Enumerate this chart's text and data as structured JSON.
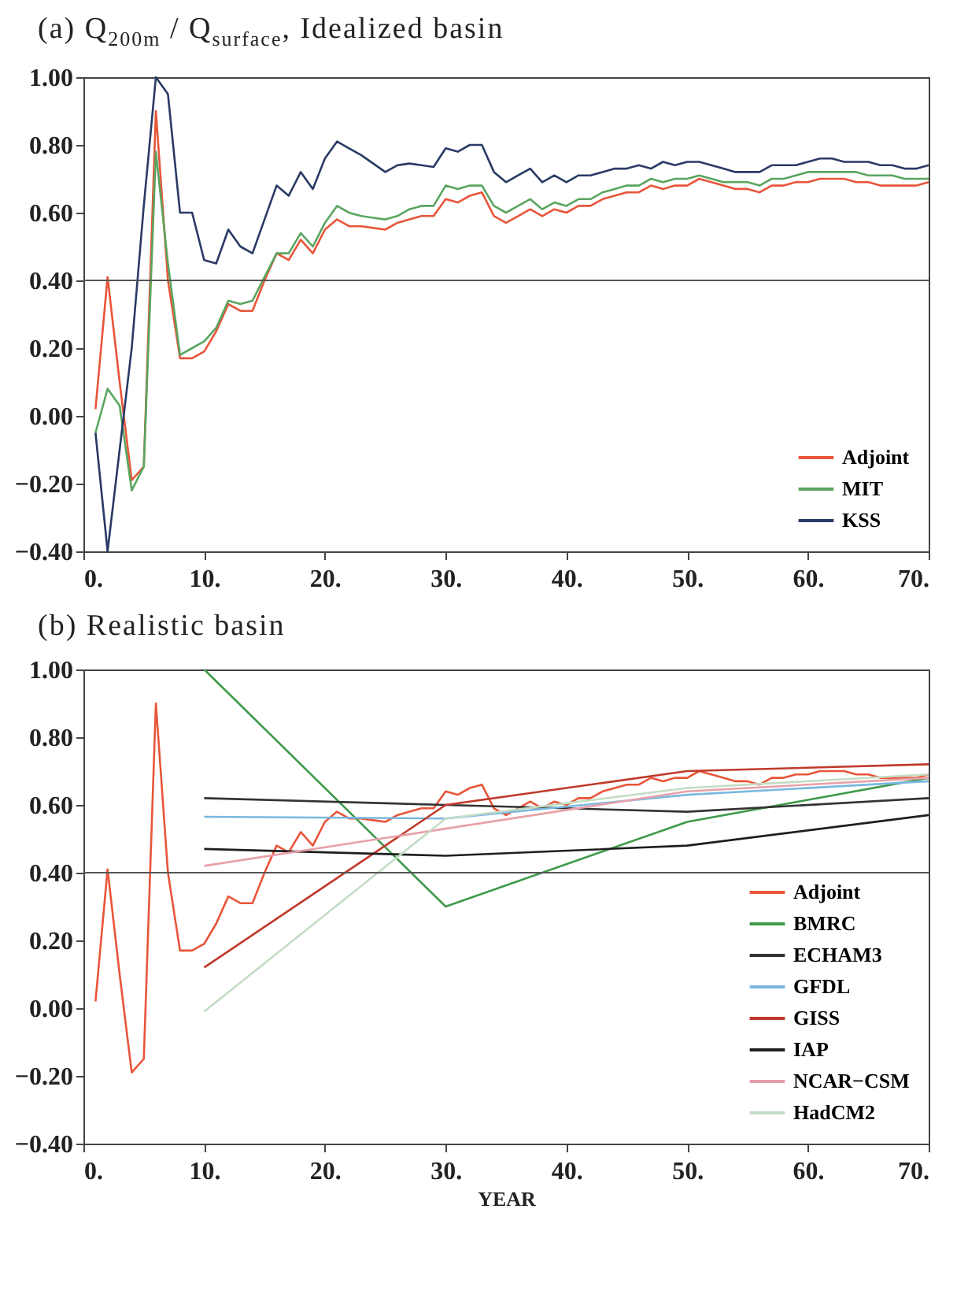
{
  "chart_data": [
    {
      "type": "line",
      "title": "(a) Q$_{200m}$ / Q$_{surface}$, Idealized basin",
      "x": [
        1,
        2,
        3,
        4,
        5,
        6,
        7,
        8,
        9,
        10,
        11,
        12,
        13,
        14,
        15,
        16,
        17,
        18,
        19,
        20,
        21,
        22,
        23,
        24,
        25,
        26,
        27,
        28,
        29,
        30,
        31,
        32,
        33,
        34,
        35,
        36,
        37,
        38,
        39,
        40,
        41,
        42,
        43,
        44,
        45,
        46,
        47,
        48,
        49,
        50,
        51,
        52,
        53,
        54,
        55,
        56,
        57,
        58,
        59,
        60,
        61,
        62,
        63,
        64,
        65,
        66,
        67,
        68,
        69,
        70
      ],
      "series": [
        {
          "name": "Adjoint",
          "color": "#e8553a",
          "values": [
            0.02,
            0.41,
            0.1,
            -0.19,
            -0.15,
            0.9,
            0.4,
            0.17,
            0.17,
            0.19,
            0.25,
            0.33,
            0.31,
            0.31,
            0.4,
            0.48,
            0.46,
            0.52,
            0.48,
            0.55,
            0.58,
            0.56,
            0.56,
            0.555,
            0.55,
            0.57,
            0.58,
            0.59,
            0.59,
            0.64,
            0.63,
            0.65,
            0.66,
            0.59,
            0.57,
            0.59,
            0.61,
            0.59,
            0.61,
            0.6,
            0.62,
            0.62,
            0.64,
            0.65,
            0.66,
            0.66,
            0.68,
            0.67,
            0.68,
            0.68,
            0.7,
            0.69,
            0.68,
            0.67,
            0.67,
            0.66,
            0.68,
            0.68,
            0.69,
            0.69,
            0.7,
            0.7,
            0.7,
            0.69,
            0.69,
            0.68,
            0.68,
            0.68,
            0.68,
            0.69
          ]
        },
        {
          "name": "MIT",
          "color": "#5aa560",
          "values": [
            -0.05,
            0.08,
            0.03,
            -0.22,
            -0.15,
            0.78,
            0.45,
            0.18,
            0.2,
            0.22,
            0.26,
            0.34,
            0.33,
            0.34,
            0.41,
            0.48,
            0.48,
            0.54,
            0.5,
            0.57,
            0.62,
            0.6,
            0.59,
            0.585,
            0.58,
            0.59,
            0.61,
            0.62,
            0.62,
            0.68,
            0.67,
            0.68,
            0.68,
            0.62,
            0.6,
            0.62,
            0.64,
            0.61,
            0.63,
            0.62,
            0.64,
            0.64,
            0.66,
            0.67,
            0.68,
            0.68,
            0.7,
            0.69,
            0.7,
            0.7,
            0.71,
            0.7,
            0.69,
            0.69,
            0.69,
            0.68,
            0.7,
            0.7,
            0.71,
            0.72,
            0.72,
            0.72,
            0.72,
            0.72,
            0.71,
            0.71,
            0.71,
            0.7,
            0.7,
            0.7
          ]
        },
        {
          "name": "KSS",
          "color": "#2a3a66",
          "values": [
            -0.05,
            -0.4,
            -0.1,
            0.2,
            0.62,
            1.0,
            0.95,
            0.6,
            0.6,
            0.46,
            0.45,
            0.55,
            0.5,
            0.48,
            0.58,
            0.68,
            0.65,
            0.72,
            0.67,
            0.76,
            0.81,
            0.79,
            0.77,
            0.745,
            0.72,
            0.74,
            0.745,
            0.74,
            0.735,
            0.79,
            0.78,
            0.8,
            0.8,
            0.72,
            0.69,
            0.71,
            0.73,
            0.69,
            0.71,
            0.69,
            0.71,
            0.71,
            0.72,
            0.73,
            0.73,
            0.74,
            0.73,
            0.75,
            0.74,
            0.75,
            0.75,
            0.74,
            0.73,
            0.72,
            0.72,
            0.72,
            0.74,
            0.74,
            0.74,
            0.75,
            0.76,
            0.76,
            0.75,
            0.75,
            0.75,
            0.74,
            0.74,
            0.73,
            0.73,
            0.74
          ]
        }
      ],
      "xlim": [
        0,
        70
      ],
      "xticks": [
        {
          "value": 0,
          "label": "0."
        },
        {
          "value": 10,
          "label": "10."
        },
        {
          "value": 20,
          "label": "20."
        },
        {
          "value": 30,
          "label": "30."
        },
        {
          "value": 40,
          "label": "40."
        },
        {
          "value": 50,
          "label": "50."
        },
        {
          "value": 60,
          "label": "60."
        },
        {
          "value": 70,
          "label": "70."
        }
      ],
      "ylim": [
        -0.4,
        1.0
      ],
      "yticks": [
        {
          "value": -0.4,
          "label": "−0.40"
        },
        {
          "value": -0.2,
          "label": "−0.20"
        },
        {
          "value": 0,
          "label": "0.00"
        },
        {
          "value": 0.2,
          "label": "0.20"
        },
        {
          "value": 0.4,
          "label": "0.40"
        },
        {
          "value": 0.6,
          "label": "0.60"
        },
        {
          "value": 0.8,
          "label": "0.80"
        },
        {
          "value": 1.0,
          "label": "1.00"
        }
      ],
      "ref_lines": [
        {
          "axis": "y",
          "value": 0.4,
          "color": "#555555"
        }
      ],
      "grid": false,
      "legend": "bottom right"
    },
    {
      "type": "line",
      "title": "(b) Realistic basin",
      "xlabel": "YEAR",
      "x": [
        1,
        2,
        3,
        4,
        5,
        6,
        7,
        8,
        9,
        10,
        11,
        12,
        13,
        14,
        15,
        16,
        17,
        18,
        19,
        20,
        21,
        22,
        23,
        24,
        25,
        26,
        27,
        28,
        29,
        30,
        31,
        32,
        33,
        34,
        35,
        36,
        37,
        38,
        39,
        40,
        41,
        42,
        43,
        44,
        45,
        46,
        47,
        48,
        49,
        50,
        51,
        52,
        53,
        54,
        55,
        56,
        57,
        58,
        59,
        60,
        61,
        62,
        63,
        64,
        65,
        66,
        67,
        68,
        69,
        70
      ],
      "series": [
        {
          "name": "Adjoint",
          "color": "#e8553a",
          "values": [
            0.02,
            0.41,
            0.1,
            -0.19,
            -0.15,
            0.9,
            0.4,
            0.17,
            0.17,
            0.19,
            0.25,
            0.33,
            0.31,
            0.31,
            0.4,
            0.48,
            0.46,
            0.52,
            0.48,
            0.55,
            0.58,
            0.56,
            0.56,
            0.555,
            0.55,
            0.57,
            0.58,
            0.59,
            0.59,
            0.64,
            0.63,
            0.65,
            0.66,
            0.59,
            0.57,
            0.59,
            0.61,
            0.59,
            0.61,
            0.6,
            0.62,
            0.62,
            0.64,
            0.65,
            0.66,
            0.66,
            0.68,
            0.67,
            0.68,
            0.68,
            0.7,
            0.69,
            0.68,
            0.67,
            0.67,
            0.66,
            0.68,
            0.68,
            0.69,
            0.69,
            0.7,
            0.7,
            0.7,
            0.69,
            0.69,
            0.68,
            0.68,
            0.68,
            0.68,
            0.69
          ]
        },
        {
          "name": "BMRC",
          "color": "#3f9a4a",
          "x": [
            10,
            30,
            50,
            70
          ],
          "values": [
            1.0,
            0.3,
            0.55,
            0.68
          ]
        },
        {
          "name": "ECHAM3",
          "color": "#333333",
          "x": [
            10,
            30,
            50,
            70
          ],
          "values": [
            0.62,
            0.6,
            0.58,
            0.62
          ]
        },
        {
          "name": "GFDL",
          "color": "#7ab8e0",
          "x": [
            10,
            30,
            50,
            70
          ],
          "values": [
            0.565,
            0.56,
            0.63,
            0.67
          ]
        },
        {
          "name": "GISS",
          "color": "#c0392b",
          "x": [
            10,
            30,
            50,
            70
          ],
          "values": [
            0.12,
            0.6,
            0.7,
            0.72
          ]
        },
        {
          "name": "IAP",
          "color": "#1e1e1e",
          "x": [
            10,
            30,
            50,
            70
          ],
          "values": [
            0.47,
            0.45,
            0.48,
            0.57
          ]
        },
        {
          "name": "NCAR−CSM",
          "color": "#e8a0a8",
          "x": [
            10,
            30,
            50,
            70
          ],
          "values": [
            0.42,
            0.53,
            0.64,
            0.68
          ]
        },
        {
          "name": "HadCM2",
          "color": "#c4dcc4",
          "x": [
            10,
            30,
            50,
            70
          ],
          "values": [
            -0.01,
            0.56,
            0.65,
            0.69
          ]
        }
      ],
      "xlim": [
        0,
        70
      ],
      "xticks": [
        {
          "value": 0,
          "label": "0."
        },
        {
          "value": 10,
          "label": "10."
        },
        {
          "value": 20,
          "label": "20."
        },
        {
          "value": 30,
          "label": "30."
        },
        {
          "value": 40,
          "label": "40."
        },
        {
          "value": 50,
          "label": "50."
        },
        {
          "value": 60,
          "label": "60."
        },
        {
          "value": 70,
          "label": "70."
        }
      ],
      "ylim": [
        -0.4,
        1.0
      ],
      "yticks": [
        {
          "value": -0.4,
          "label": "−0.40"
        },
        {
          "value": -0.2,
          "label": "−0.20"
        },
        {
          "value": 0,
          "label": "0.00"
        },
        {
          "value": 0.2,
          "label": "0.20"
        },
        {
          "value": 0.4,
          "label": "0.40"
        },
        {
          "value": 0.6,
          "label": "0.60"
        },
        {
          "value": 0.8,
          "label": "0.80"
        },
        {
          "value": 1.0,
          "label": "1.00"
        }
      ],
      "ref_lines": [
        {
          "axis": "y",
          "value": 0.4,
          "color": "#555555"
        }
      ],
      "grid": false,
      "legend": "bottom right"
    }
  ]
}
